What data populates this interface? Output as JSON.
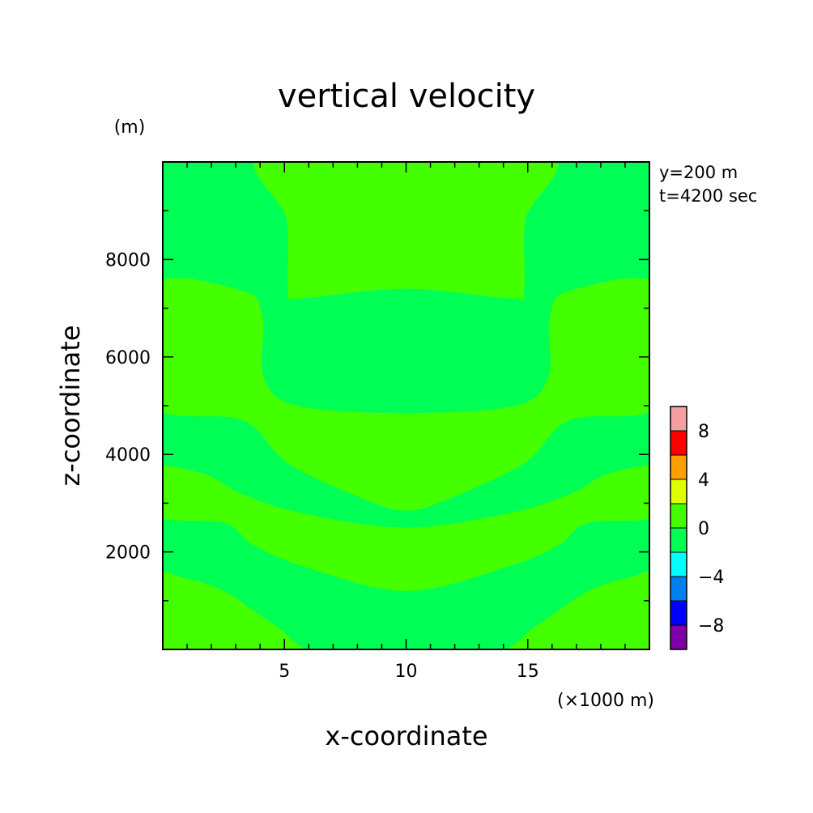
{
  "chart_data": {
    "type": "heatmap",
    "title": "vertical velocity",
    "xlabel": "x-coordinate",
    "ylabel": "z-coordinate",
    "x_unit_label": "(×1000 m)",
    "y_unit_label": "(m)",
    "annotations": [
      "y=200 m",
      "t=4200 sec"
    ],
    "xlim": [
      0,
      20
    ],
    "ylim": [
      0,
      10000
    ],
    "x_ticks": [
      5,
      10,
      15
    ],
    "x_tick_labels": [
      "5",
      "10",
      "15"
    ],
    "y_ticks": [
      2000,
      4000,
      6000,
      8000
    ],
    "y_tick_labels": [
      "2000",
      "4000",
      "6000",
      "8000"
    ],
    "colorbar": {
      "levels": [
        -10,
        -8,
        -6,
        -4,
        -2,
        0,
        2,
        4,
        6,
        8,
        10
      ],
      "colors": [
        "#7f00a6",
        "#0000ff",
        "#0080f0",
        "#00ffff",
        "#00ff55",
        "#44ff00",
        "#e0ff00",
        "#ffa000",
        "#ff0000",
        "#f5a0a0"
      ],
      "tick_values": [
        -8,
        -4,
        0,
        4,
        8
      ],
      "tick_labels": [
        "−8",
        "−4",
        "0",
        "4",
        "8"
      ]
    },
    "field_colors": {
      "low": "#00ff55",
      "high": "#44ff00"
    },
    "regions": [
      {
        "name": "upper-center-plume",
        "band": "0 to 2",
        "outline": [
          [
            4.4,
            10000
          ],
          [
            5.1,
            8800
          ],
          [
            5.15,
            7350
          ],
          [
            5.6,
            7200
          ],
          [
            10,
            7400
          ],
          [
            14.4,
            7200
          ],
          [
            14.85,
            7350
          ],
          [
            14.9,
            8800
          ],
          [
            15.6,
            10000
          ]
        ]
      },
      {
        "name": "mid-band",
        "band": "0 to 2",
        "outline": [
          [
            0,
            7450
          ],
          [
            3.3,
            7350
          ],
          [
            4.1,
            6800
          ],
          [
            4.15,
            5600
          ],
          [
            5.5,
            5000
          ],
          [
            10,
            4850
          ],
          [
            14.5,
            5000
          ],
          [
            15.85,
            5600
          ],
          [
            15.9,
            6800
          ],
          [
            16.7,
            7350
          ],
          [
            20,
            7450
          ],
          [
            20,
            5050
          ],
          [
            16.7,
            4700
          ],
          [
            14.8,
            3800
          ],
          [
            11.3,
            3000
          ],
          [
            10,
            2850
          ],
          [
            8.7,
            3000
          ],
          [
            5.2,
            3800
          ],
          [
            3.3,
            4700
          ],
          [
            0,
            5050
          ]
        ]
      },
      {
        "name": "lower-band",
        "band": "0 to 2",
        "outline": [
          [
            0,
            3720
          ],
          [
            1.7,
            3600
          ],
          [
            3.2,
            3200
          ],
          [
            5.7,
            2800
          ],
          [
            10,
            2500
          ],
          [
            14.3,
            2800
          ],
          [
            16.8,
            3200
          ],
          [
            18.3,
            3600
          ],
          [
            20,
            3720
          ],
          [
            20,
            2750
          ],
          [
            17.5,
            2600
          ],
          [
            16.3,
            2150
          ],
          [
            14.2,
            1700
          ],
          [
            10,
            1200
          ],
          [
            5.8,
            1700
          ],
          [
            3.7,
            2150
          ],
          [
            2.5,
            2600
          ],
          [
            0,
            2750
          ]
        ]
      },
      {
        "name": "bottom-left-lobe",
        "band": "0 to 2",
        "outline": [
          [
            0,
            1470
          ],
          [
            1.0,
            1450
          ],
          [
            2.5,
            1200
          ],
          [
            4.0,
            700
          ],
          [
            5.2,
            250
          ],
          [
            5.6,
            0
          ],
          [
            0,
            0
          ]
        ]
      },
      {
        "name": "bottom-right-lobe",
        "band": "0 to 2",
        "outline": [
          [
            20,
            1470
          ],
          [
            19.0,
            1450
          ],
          [
            17.5,
            1200
          ],
          [
            16.0,
            700
          ],
          [
            14.8,
            250
          ],
          [
            14.4,
            0
          ],
          [
            20,
            0
          ]
        ]
      }
    ]
  }
}
